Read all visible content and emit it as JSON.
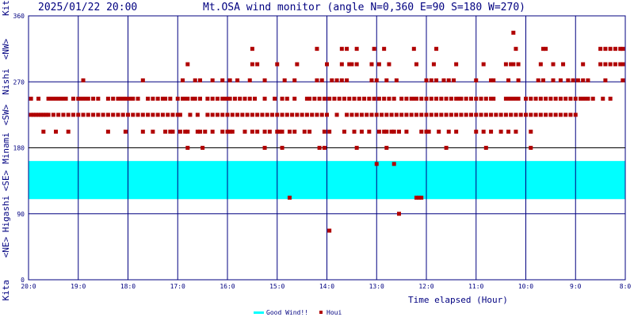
{
  "header": {
    "timestamp": "2025/01/22 20:00",
    "title": "Mt.OSA wind monitor (angle N=0,360 E=90 S=180 W=270)"
  },
  "colors": {
    "grid": "#000080",
    "good_band": "#00ffff",
    "points": "#b00000",
    "text": "#000080"
  },
  "chart_data": {
    "type": "scatter",
    "title": "Mt.OSA wind monitor (angle N=0,360 E=90 S=180 W=270)",
    "xlabel": "Time elapsed (Hour)",
    "ylabel": "Kita <NE> Higashi <SE> Minami <SW> Nishi <NW> Kita",
    "ylabel_parts": [
      "Kita",
      "<NE>",
      "Higashi",
      "<SE>",
      "Minami",
      "<SW>",
      "Nishi",
      "<NW>",
      "Kita"
    ],
    "x_ticks": [
      "20:0",
      "19:0",
      "18:0",
      "17:0",
      "16:0",
      "15:0",
      "14:0",
      "13:0",
      "12:0",
      "11:0",
      "10:0",
      "9:0",
      "8:0"
    ],
    "xlim": [
      0,
      12
    ],
    "y_ticks": [
      "0",
      "90",
      "180",
      "270",
      "360"
    ],
    "ylim": [
      0,
      360
    ],
    "good_wind_range": [
      110,
      162
    ],
    "legend": {
      "position": "bottom",
      "good_label": "Good Wind!!",
      "points_label": "Houi"
    },
    "series": [
      {
        "name": "Houi",
        "rows": [
          {
            "y": 315,
            "x": [
              4.5,
              5.8,
              6.3,
              6.4,
              6.6,
              6.95,
              7.15,
              7.75,
              8.2,
              9.8,
              10.4,
              10.35,
              11.5,
              11.6,
              11.7,
              11.8,
              11.9,
              11.95
            ]
          },
          {
            "y": 337,
            "x": [
              9.75
            ]
          },
          {
            "y": 294,
            "x": [
              3.2,
              4.6,
              4.5,
              5.0,
              5.4,
              6.0,
              6.3,
              6.45,
              6.5,
              6.6,
              6.9,
              7.05,
              7.25,
              7.8,
              8.15,
              8.6,
              9.15,
              9.6,
              9.7,
              9.75,
              9.85,
              10.3,
              10.55,
              10.75,
              11.15,
              11.5,
              11.6,
              11.7,
              11.8,
              11.9,
              11.95
            ]
          },
          {
            "y": 272,
            "x": [
              1.1,
              2.3,
              3.1,
              3.35,
              3.45,
              3.7,
              3.9,
              4.05,
              4.2,
              4.45,
              4.75,
              5.15,
              5.35,
              5.8,
              5.9,
              6.1,
              6.2,
              6.3,
              6.4,
              6.9,
              7.0,
              7.2,
              7.4,
              8.0,
              8.1,
              8.2,
              8.35,
              8.45,
              8.55,
              9.0,
              9.3,
              9.35,
              9.65,
              9.85,
              10.25,
              10.35,
              10.55,
              10.7,
              10.85,
              10.95,
              11.05,
              11.15,
              11.25,
              11.6,
              11.95
            ]
          },
          {
            "y": 247,
            "x": [
              0.05,
              0.2,
              0.4,
              0.45,
              0.5,
              0.55,
              0.6,
              0.65,
              0.7,
              0.75,
              0.9,
              1.0,
              1.05,
              1.1,
              1.15,
              1.2,
              1.3,
              1.4,
              1.6,
              1.7,
              1.8,
              1.85,
              1.9,
              1.95,
              2.0,
              2.05,
              2.1,
              2.2,
              2.4,
              2.5,
              2.6,
              2.7,
              2.75,
              2.85,
              3.0,
              3.1,
              3.15,
              3.2,
              3.3,
              3.35,
              3.45,
              3.6,
              3.7,
              3.8,
              3.9,
              3.95,
              4.0,
              4.05,
              4.15,
              4.25,
              4.35,
              4.45,
              4.55,
              4.75,
              4.95,
              5.1,
              5.2,
              5.35,
              5.6,
              5.65,
              5.75,
              5.85,
              5.95,
              6.05,
              6.15,
              6.25,
              6.35,
              6.45,
              6.55,
              6.65,
              6.75,
              6.85,
              6.95,
              7.05,
              7.15,
              7.25,
              7.35,
              7.5,
              7.6,
              7.7,
              7.75,
              7.8,
              7.9,
              8.0,
              8.1,
              8.2,
              8.3,
              8.4,
              8.5,
              8.6,
              8.65,
              8.7,
              8.8,
              8.9,
              9.0,
              9.1,
              9.2,
              9.3,
              9.35,
              9.6,
              9.65,
              9.7,
              9.75,
              9.8,
              9.85,
              10.0,
              10.1,
              10.2,
              10.3,
              10.4,
              10.5,
              10.6,
              10.7,
              10.8,
              10.9,
              11.0,
              11.1,
              11.15,
              11.2,
              11.25,
              11.35,
              11.55,
              11.7
            ]
          },
          {
            "y": 225,
            "x": [
              0.05,
              0.1,
              0.15,
              0.2,
              0.25,
              0.3,
              0.35,
              0.4,
              0.5,
              0.6,
              0.7,
              0.8,
              0.9,
              1.0,
              1.1,
              1.2,
              1.3,
              1.4,
              1.5,
              1.6,
              1.7,
              1.8,
              1.9,
              2.0,
              2.1,
              2.2,
              2.3,
              2.4,
              2.5,
              2.6,
              2.7,
              2.8,
              2.9,
              3.0,
              3.05,
              3.25,
              3.4,
              3.6,
              3.7,
              3.8,
              3.9,
              4.0,
              4.1,
              4.2,
              4.3,
              4.4,
              4.5,
              4.6,
              4.7,
              4.8,
              4.9,
              5.0,
              5.1,
              5.2,
              5.3,
              5.4,
              5.5,
              5.6,
              5.7,
              5.8,
              5.9,
              6.0,
              6.2,
              6.4,
              6.5,
              6.6,
              6.7,
              6.8,
              6.9,
              7.0,
              7.1,
              7.2,
              7.3,
              7.4,
              7.5,
              7.6,
              7.7,
              7.8,
              7.9,
              8.0,
              8.1,
              8.2,
              8.3,
              8.4,
              8.5,
              8.6,
              8.7,
              8.8,
              8.9,
              9.0,
              9.1,
              9.2,
              9.3,
              9.4,
              9.5,
              9.6,
              9.7,
              9.8,
              9.9,
              10.0,
              10.1,
              10.2,
              10.3,
              10.4,
              10.5,
              10.6,
              10.7,
              10.8,
              10.9,
              11.0
            ]
          },
          {
            "y": 202,
            "x": [
              0.3,
              0.55,
              0.8,
              1.6,
              1.95,
              2.3,
              2.5,
              2.75,
              2.85,
              2.9,
              3.05,
              3.15,
              3.2,
              3.4,
              3.45,
              3.55,
              3.7,
              3.9,
              4.0,
              4.05,
              4.1,
              4.35,
              4.5,
              4.6,
              4.75,
              4.85,
              5.0,
              5.05,
              5.1,
              5.25,
              5.35,
              5.55,
              5.65,
              5.95,
              6.05,
              6.35,
              6.55,
              6.7,
              6.85,
              7.05,
              7.15,
              7.2,
              7.3,
              7.35,
              7.45,
              7.6,
              7.9,
              8.0,
              8.05,
              8.25,
              8.45,
              8.6,
              9.0,
              9.15,
              9.3,
              9.5,
              9.65,
              9.8,
              10.1
            ]
          },
          {
            "y": 180,
            "x": [
              3.2,
              3.5,
              4.75,
              5.1,
              5.85,
              5.95,
              6.6,
              7.2,
              8.4,
              9.2,
              10.1
            ]
          },
          {
            "y": 158,
            "x": [
              7.0,
              7.35
            ]
          },
          {
            "y": 112,
            "x": [
              5.25,
              7.8,
              7.85,
              7.9
            ]
          },
          {
            "y": 90,
            "x": [
              7.45
            ]
          },
          {
            "y": 67,
            "x": [
              6.05
            ]
          }
        ]
      }
    ]
  }
}
